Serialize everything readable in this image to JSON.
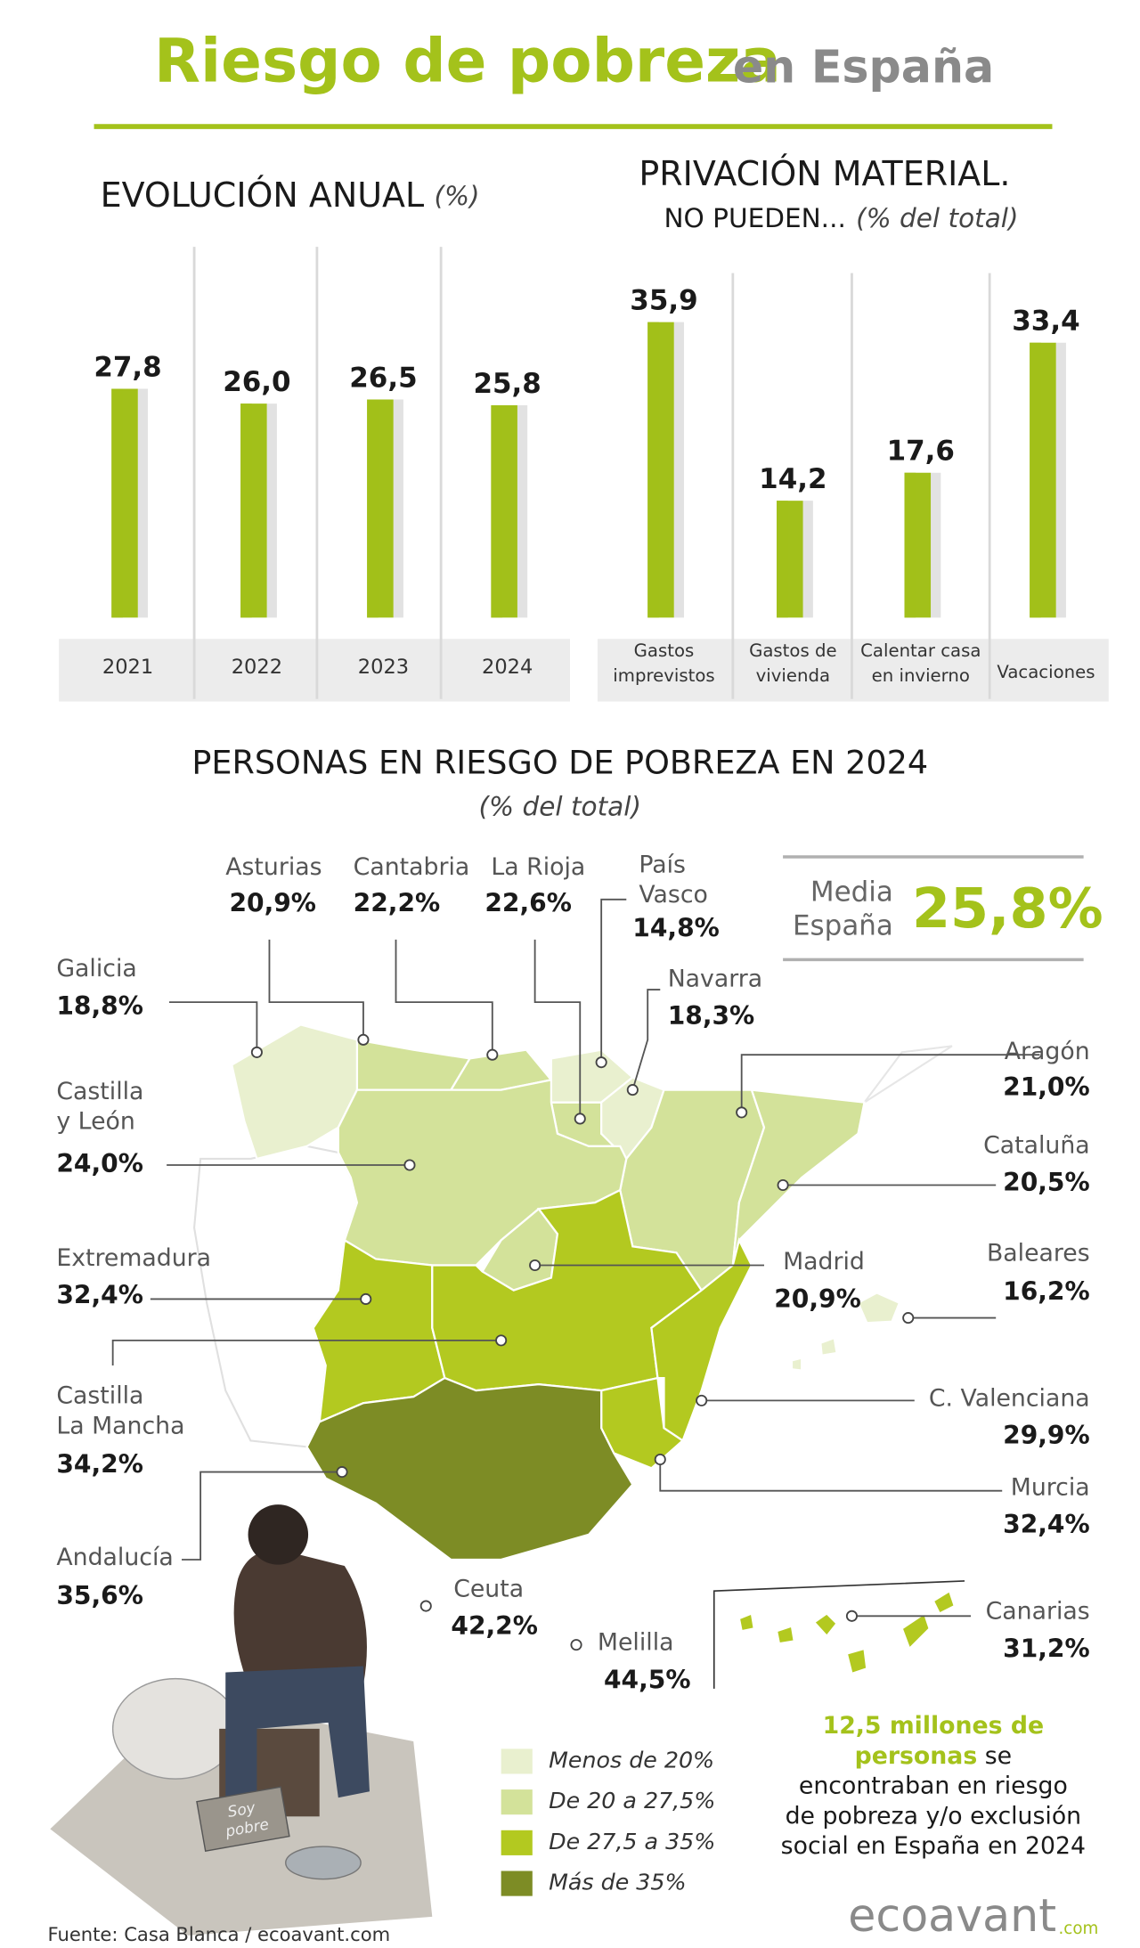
{
  "title": "Riesgo de pobreza",
  "title_suffix": "en España",
  "chart_data": [
    {
      "type": "bar",
      "title": "EVOLUCIÓN ANUAL",
      "unit": "(%)",
      "categories": [
        [
          "2021"
        ],
        [
          "2022"
        ],
        [
          "2023"
        ],
        [
          "2024"
        ]
      ],
      "values": [
        27.8,
        26.0,
        26.5,
        25.8
      ],
      "value_labels": [
        "27,8",
        "26,0",
        "26,5",
        "25,8"
      ],
      "color": "#a2c01a",
      "shadow_color": "#e2e2e2"
    },
    {
      "type": "bar",
      "title": "PRIVACIÓN MATERIAL.",
      "subtitle": "NO PUEDEN...",
      "unit": "(% del total)",
      "categories": [
        [
          "Gastos",
          "imprevistos"
        ],
        [
          "Gastos de",
          "vivienda"
        ],
        [
          "Calentar casa",
          "en invierno"
        ],
        [
          "Vacaciones"
        ]
      ],
      "values": [
        35.9,
        14.2,
        17.6,
        33.4
      ],
      "value_labels": [
        "35,9",
        "14,2",
        "17,6",
        "33,4"
      ],
      "color": "#a2c01a",
      "shadow_color": "#e2e2e2"
    }
  ],
  "map": {
    "title": "PERSONAS EN RIESGO DE POBREZA EN 2024",
    "subtitle": "(% del total)",
    "average": {
      "label": [
        "Media",
        "España"
      ],
      "value": "25,8%"
    },
    "regions": [
      {
        "name": [
          "Asturias"
        ],
        "value": "20,9%",
        "color": "#d3e29a"
      },
      {
        "name": [
          "Cantabria"
        ],
        "value": "22,2%",
        "color": "#d3e29a"
      },
      {
        "name": [
          "La Rioja"
        ],
        "value": "22,6%",
        "color": "#d3e29a"
      },
      {
        "name": [
          "País",
          "Vasco"
        ],
        "value": "14,8%",
        "color": "#e9f0cf"
      },
      {
        "name": [
          "Galicia"
        ],
        "value": "18,8%",
        "color": "#e9f0cf"
      },
      {
        "name": [
          "Navarra"
        ],
        "value": "18,3%",
        "color": "#e9f0cf"
      },
      {
        "name": [
          "Aragón"
        ],
        "value": "21,0%",
        "color": "#d3e29a"
      },
      {
        "name": [
          "Castilla",
          "y León"
        ],
        "value": "24,0%",
        "color": "#d3e29a"
      },
      {
        "name": [
          "Cataluña"
        ],
        "value": "20,5%",
        "color": "#d3e29a"
      },
      {
        "name": [
          "Extremadura"
        ],
        "value": "32,4%",
        "color": "#b3c920"
      },
      {
        "name": [
          "Baleares"
        ],
        "value": "16,2%",
        "color": "#e9f0cf"
      },
      {
        "name": [
          "Madrid"
        ],
        "value": "20,9%",
        "color": "#d3e29a"
      },
      {
        "name": [
          "Castilla",
          "La Mancha"
        ],
        "value": "34,2%",
        "color": "#b3c920"
      },
      {
        "name": [
          "C. Valenciana"
        ],
        "value": "29,9%",
        "color": "#b3c920"
      },
      {
        "name": [
          "Murcia"
        ],
        "value": "32,4%",
        "color": "#b3c920"
      },
      {
        "name": [
          "Andalucía"
        ],
        "value": "35,6%",
        "color": "#7d8c25"
      },
      {
        "name": [
          "Ceuta"
        ],
        "value": "42,2%",
        "color": "#7d8c25"
      },
      {
        "name": [
          "Melilla"
        ],
        "value": "44,5%",
        "color": "#7d8c25"
      },
      {
        "name": [
          "Canarias"
        ],
        "value": "31,2%",
        "color": "#b3c920"
      }
    ],
    "legend": [
      {
        "label": "Menos de 20%",
        "color": "#e9f0cf"
      },
      {
        "label": "De 20 a 27,5%",
        "color": "#d3e29a"
      },
      {
        "label": "De 27,5 a 35%",
        "color": "#b3c920"
      },
      {
        "label": "Más de 35%",
        "color": "#7d8c25"
      }
    ],
    "note": [
      {
        "highlight": "12,5 millones de"
      },
      {
        "highlight": "personas",
        "text": " se"
      },
      {
        "text": "encontraban en riesgo"
      },
      {
        "text": "de pobreza y/o exclusión"
      },
      {
        "text": "social en España en 2024"
      }
    ],
    "sign": [
      "Soy",
      "pobre"
    ]
  },
  "source": "Fuente:  Casa Blanca / ecoavant.com",
  "logo": "ecoavant",
  "logo_suffix": ".com"
}
